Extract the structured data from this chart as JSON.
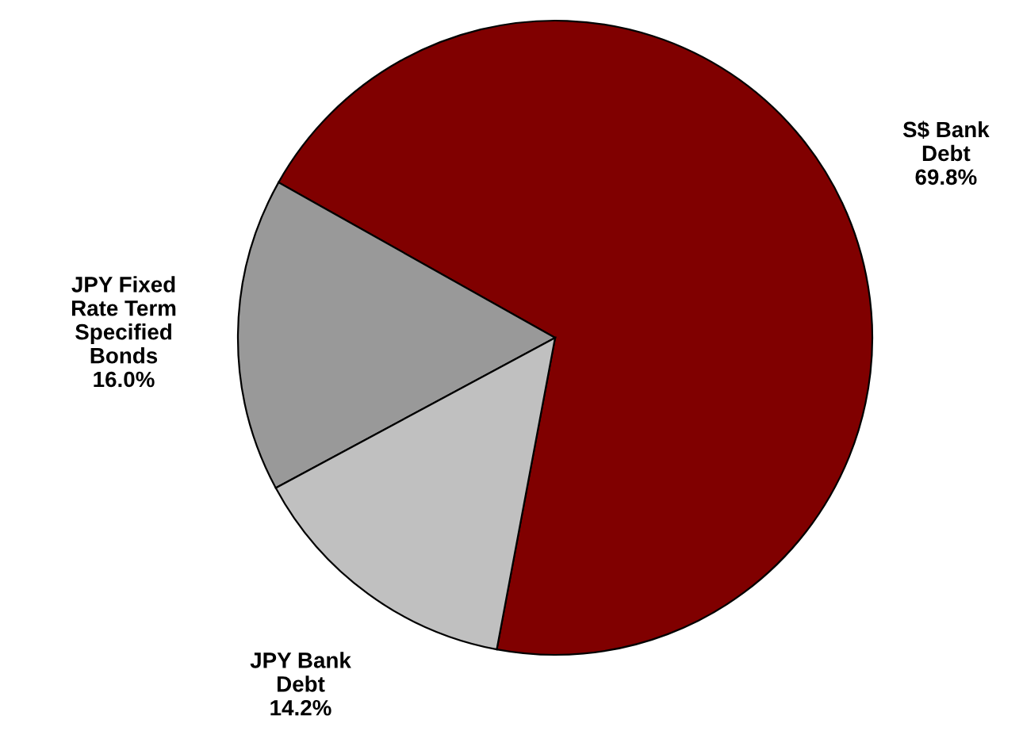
{
  "chart_data": {
    "type": "pie",
    "categories": [
      "S$ Bank\nDebt",
      "JPY Fixed\nRate Term\nSpecified\nBonds",
      "JPY Bank\nDebt"
    ],
    "values": [
      69.8,
      16.0,
      14.2
    ],
    "value_labels": [
      "69.8%",
      "16.0%",
      "14.2%"
    ],
    "colors": [
      "#800000",
      "#999999",
      "#c0c0c0"
    ]
  }
}
